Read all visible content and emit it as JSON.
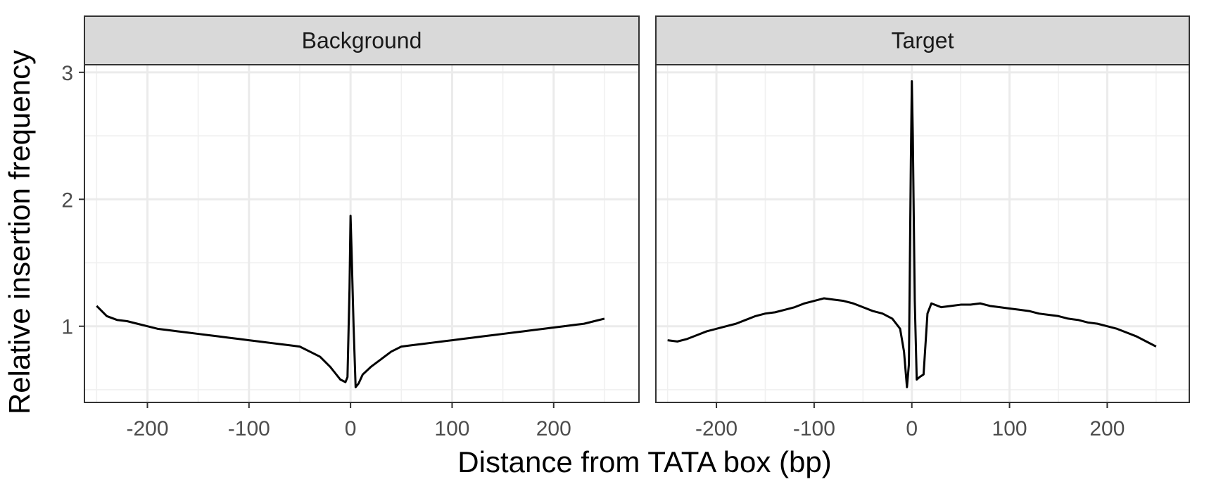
{
  "chart_data": {
    "type": "line",
    "xlabel": "Distance from TATA box (bp)",
    "ylabel": "Relative insertion frequency",
    "xlim": [
      -262,
      284
    ],
    "ylim": [
      0.4,
      3.06
    ],
    "x_ticks": [
      -200,
      -100,
      0,
      100,
      200
    ],
    "x_tick_labels": [
      "-200",
      "-100",
      "0",
      "100",
      "200"
    ],
    "y_ticks": [
      1,
      2,
      3
    ],
    "y_tick_labels": [
      "1",
      "2",
      "3"
    ],
    "grid": true,
    "line_color": "#000000",
    "panels": [
      {
        "title": "Background",
        "points": [
          [
            -250,
            1.16
          ],
          [
            -240,
            1.08
          ],
          [
            -230,
            1.05
          ],
          [
            -220,
            1.04
          ],
          [
            -210,
            1.02
          ],
          [
            -200,
            1.0
          ],
          [
            -190,
            0.98
          ],
          [
            -180,
            0.97
          ],
          [
            -170,
            0.96
          ],
          [
            -160,
            0.95
          ],
          [
            -150,
            0.94
          ],
          [
            -140,
            0.93
          ],
          [
            -130,
            0.92
          ],
          [
            -120,
            0.91
          ],
          [
            -110,
            0.9
          ],
          [
            -100,
            0.89
          ],
          [
            -90,
            0.88
          ],
          [
            -80,
            0.87
          ],
          [
            -70,
            0.86
          ],
          [
            -60,
            0.85
          ],
          [
            -50,
            0.84
          ],
          [
            -40,
            0.8
          ],
          [
            -30,
            0.76
          ],
          [
            -20,
            0.68
          ],
          [
            -15,
            0.63
          ],
          [
            -10,
            0.58
          ],
          [
            -5,
            0.56
          ],
          [
            -3,
            0.6
          ],
          [
            -1,
            1.3
          ],
          [
            0,
            1.87
          ],
          [
            1,
            1.6
          ],
          [
            3,
            1.0
          ],
          [
            5,
            0.52
          ],
          [
            8,
            0.55
          ],
          [
            12,
            0.62
          ],
          [
            20,
            0.68
          ],
          [
            30,
            0.74
          ],
          [
            40,
            0.8
          ],
          [
            50,
            0.84
          ],
          [
            60,
            0.85
          ],
          [
            70,
            0.86
          ],
          [
            80,
            0.87
          ],
          [
            90,
            0.88
          ],
          [
            100,
            0.89
          ],
          [
            110,
            0.9
          ],
          [
            120,
            0.91
          ],
          [
            130,
            0.92
          ],
          [
            140,
            0.93
          ],
          [
            150,
            0.94
          ],
          [
            160,
            0.95
          ],
          [
            170,
            0.96
          ],
          [
            180,
            0.97
          ],
          [
            190,
            0.98
          ],
          [
            200,
            0.99
          ],
          [
            210,
            1.0
          ],
          [
            220,
            1.01
          ],
          [
            230,
            1.02
          ],
          [
            240,
            1.04
          ],
          [
            250,
            1.06
          ]
        ]
      },
      {
        "title": "Target",
        "points": [
          [
            -250,
            0.89
          ],
          [
            -240,
            0.88
          ],
          [
            -230,
            0.9
          ],
          [
            -220,
            0.93
          ],
          [
            -210,
            0.96
          ],
          [
            -200,
            0.98
          ],
          [
            -190,
            1.0
          ],
          [
            -180,
            1.02
          ],
          [
            -170,
            1.05
          ],
          [
            -160,
            1.08
          ],
          [
            -150,
            1.1
          ],
          [
            -140,
            1.11
          ],
          [
            -130,
            1.13
          ],
          [
            -120,
            1.15
          ],
          [
            -110,
            1.18
          ],
          [
            -100,
            1.2
          ],
          [
            -90,
            1.22
          ],
          [
            -80,
            1.21
          ],
          [
            -70,
            1.2
          ],
          [
            -60,
            1.18
          ],
          [
            -50,
            1.15
          ],
          [
            -40,
            1.12
          ],
          [
            -30,
            1.1
          ],
          [
            -20,
            1.06
          ],
          [
            -12,
            0.98
          ],
          [
            -8,
            0.8
          ],
          [
            -5,
            0.52
          ],
          [
            -3,
            0.7
          ],
          [
            -1,
            2.3
          ],
          [
            0,
            2.93
          ],
          [
            1,
            2.5
          ],
          [
            3,
            1.2
          ],
          [
            5,
            0.58
          ],
          [
            8,
            0.6
          ],
          [
            12,
            0.62
          ],
          [
            16,
            1.1
          ],
          [
            20,
            1.18
          ],
          [
            30,
            1.15
          ],
          [
            40,
            1.16
          ],
          [
            50,
            1.17
          ],
          [
            60,
            1.17
          ],
          [
            70,
            1.18
          ],
          [
            80,
            1.16
          ],
          [
            90,
            1.15
          ],
          [
            100,
            1.14
          ],
          [
            110,
            1.13
          ],
          [
            120,
            1.12
          ],
          [
            130,
            1.1
          ],
          [
            140,
            1.09
          ],
          [
            150,
            1.08
          ],
          [
            160,
            1.06
          ],
          [
            170,
            1.05
          ],
          [
            180,
            1.03
          ],
          [
            190,
            1.02
          ],
          [
            200,
            1.0
          ],
          [
            210,
            0.98
          ],
          [
            220,
            0.95
          ],
          [
            230,
            0.92
          ],
          [
            240,
            0.88
          ],
          [
            250,
            0.84
          ]
        ]
      }
    ]
  }
}
